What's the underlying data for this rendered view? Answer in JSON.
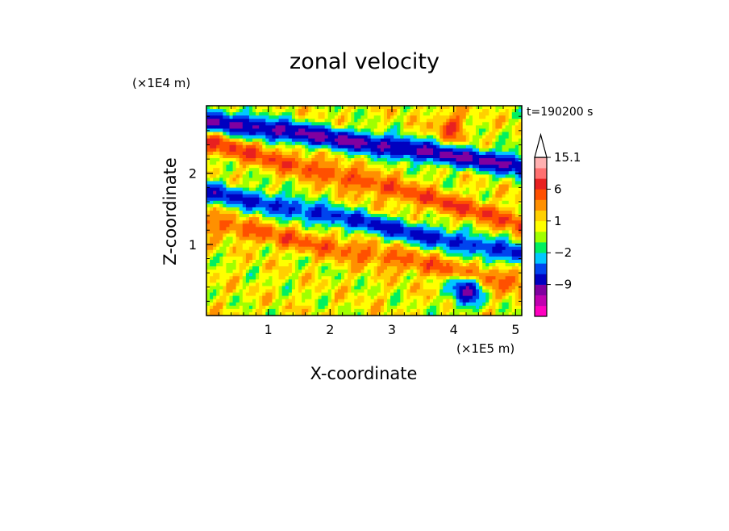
{
  "chart_data": {
    "type": "heatmap",
    "title": "zonal velocity",
    "xlabel": "X-coordinate",
    "ylabel": "Z-coordinate",
    "x_unit": "(×1E5 m)",
    "y_unit": "(×1E4 m)",
    "time_label": "t=190200 s",
    "xlim": [
      0.0,
      5.1
    ],
    "ylim": [
      0.0,
      2.95
    ],
    "x_ticks": [
      1,
      2,
      3,
      4,
      5
    ],
    "y_ticks": [
      1,
      2
    ],
    "colorbar": {
      "levels": [
        -15,
        -12,
        -9,
        -6,
        -4,
        -2,
        -1,
        0,
        1,
        2,
        4,
        6,
        9,
        12,
        15.1
      ],
      "colors": [
        "#ff00c0",
        "#c000b0",
        "#8000a0",
        "#0000c0",
        "#0044ee",
        "#00c8ff",
        "#00f060",
        "#a0ff00",
        "#ffff00",
        "#ffd000",
        "#ff9000",
        "#ff5000",
        "#e82020",
        "#ff7070",
        "#ffb0b0"
      ],
      "labels": [
        "15.1",
        "6",
        "1",
        "−2",
        "−9"
      ],
      "label_values": [
        15.1,
        6,
        1,
        -2,
        -9
      ],
      "extend_top": true
    },
    "field_features": [
      {
        "kind": "negative-band",
        "from": [
          0.0,
          2.75
        ],
        "to": [
          5.1,
          2.1
        ],
        "min": -10
      },
      {
        "kind": "positive-band",
        "from": [
          0.0,
          2.45
        ],
        "to": [
          5.1,
          1.3
        ],
        "max": 5
      },
      {
        "kind": "negative-band",
        "from": [
          0.0,
          1.75
        ],
        "to": [
          5.1,
          0.85
        ],
        "min": -7
      },
      {
        "kind": "positive-band",
        "from": [
          0.0,
          1.3
        ],
        "to": [
          5.1,
          0.45
        ],
        "max": 4
      },
      {
        "kind": "negative-blob",
        "center": [
          4.2,
          0.35
        ],
        "min": -10
      },
      {
        "kind": "positive-blob",
        "center": [
          3.95,
          2.65
        ],
        "max": 5
      }
    ]
  }
}
